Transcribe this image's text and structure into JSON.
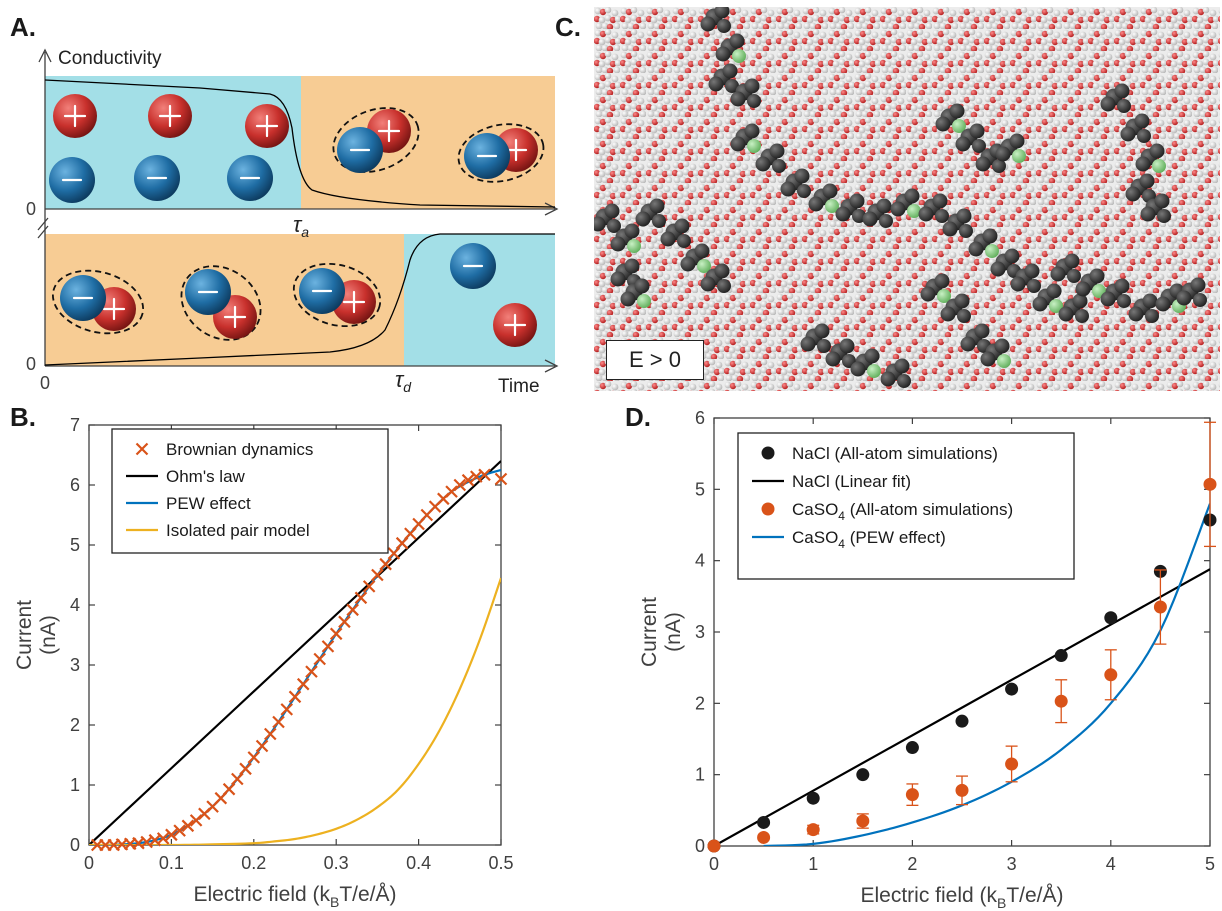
{
  "panels": {
    "a": "A.",
    "b": "B.",
    "c": "C.",
    "d": "D."
  },
  "schematic": {
    "ylabel": "Conductivity",
    "xlabel": "Time",
    "zero_top": "0",
    "zero_bottom": "0",
    "origin": "0",
    "tau_a": "τ",
    "tau_a_sub": "a",
    "tau_d": "τ",
    "tau_d_sub": "d",
    "colors": {
      "free": "#a3dfe7",
      "paired": "#f7cc94",
      "cation": "#c8302c",
      "anion": "#1f6da4"
    }
  },
  "snapshot": {
    "label": "E > 0"
  },
  "chart_data": [
    {
      "type": "line",
      "panel": "B",
      "xlabel": "Electric field (k_BT/e/Å)",
      "ylabel": "Current (nA)",
      "xlim": [
        0,
        0.5
      ],
      "ylim": [
        0,
        7
      ],
      "xticks": [
        0,
        0.1,
        0.2,
        0.3,
        0.4,
        0.5
      ],
      "yticks": [
        0,
        1,
        2,
        3,
        4,
        5,
        6,
        7
      ],
      "legend_position": "top-left",
      "series": [
        {
          "name": "Brownian dynamics",
          "kind": "markers",
          "marker": "x",
          "color": "#d95319",
          "x": [
            0.01,
            0.02,
            0.03,
            0.04,
            0.05,
            0.06,
            0.07,
            0.08,
            0.09,
            0.1,
            0.11,
            0.12,
            0.13,
            0.14,
            0.15,
            0.16,
            0.17,
            0.18,
            0.19,
            0.2,
            0.21,
            0.22,
            0.23,
            0.24,
            0.25,
            0.26,
            0.27,
            0.28,
            0.29,
            0.3,
            0.31,
            0.32,
            0.33,
            0.34,
            0.35,
            0.36,
            0.37,
            0.38,
            0.39,
            0.4,
            0.41,
            0.42,
            0.43,
            0.44,
            0.45,
            0.46,
            0.47,
            0.48,
            0.5
          ],
          "y": [
            0.0,
            0.0,
            0.0,
            0.01,
            0.02,
            0.03,
            0.05,
            0.08,
            0.11,
            0.17,
            0.24,
            0.32,
            0.41,
            0.52,
            0.64,
            0.78,
            0.93,
            1.1,
            1.27,
            1.46,
            1.65,
            1.85,
            2.05,
            2.26,
            2.47,
            2.68,
            2.89,
            3.1,
            3.31,
            3.52,
            3.72,
            3.92,
            4.12,
            4.31,
            4.5,
            4.68,
            4.86,
            5.03,
            5.19,
            5.35,
            5.5,
            5.64,
            5.77,
            5.89,
            6.0,
            6.08,
            6.14,
            6.17,
            6.1
          ]
        },
        {
          "name": "Ohm's law",
          "kind": "line",
          "color": "#000000",
          "x": [
            0,
            0.5
          ],
          "y": [
            0,
            6.4
          ]
        },
        {
          "name": "PEW effect",
          "kind": "line",
          "color": "#0072bd",
          "x": [
            0,
            0.02,
            0.04,
            0.06,
            0.08,
            0.1,
            0.12,
            0.14,
            0.16,
            0.18,
            0.2,
            0.22,
            0.24,
            0.26,
            0.28,
            0.3,
            0.32,
            0.34,
            0.36,
            0.38,
            0.4,
            0.42,
            0.44,
            0.46,
            0.48,
            0.5
          ],
          "y": [
            0,
            0.0,
            0.01,
            0.03,
            0.08,
            0.17,
            0.32,
            0.52,
            0.78,
            1.1,
            1.46,
            1.85,
            2.26,
            2.68,
            3.1,
            3.52,
            3.92,
            4.31,
            4.68,
            5.03,
            5.35,
            5.64,
            5.89,
            6.05,
            6.17,
            6.25
          ]
        },
        {
          "name": "Isolated pair model",
          "kind": "line",
          "color": "#edb120",
          "x": [
            0,
            0.1,
            0.15,
            0.2,
            0.225,
            0.25,
            0.275,
            0.3,
            0.325,
            0.35,
            0.375,
            0.4,
            0.425,
            0.45,
            0.475,
            0.5
          ],
          "y": [
            0,
            0.0,
            0.01,
            0.03,
            0.06,
            0.1,
            0.17,
            0.27,
            0.42,
            0.63,
            0.92,
            1.35,
            1.9,
            2.6,
            3.45,
            4.45
          ]
        }
      ]
    },
    {
      "type": "scatter",
      "panel": "D",
      "xlabel": "Electric field (k_BT/e/Å)",
      "ylabel": "Current (nA)",
      "xlim": [
        0,
        5
      ],
      "ylim": [
        0,
        6
      ],
      "xticks": [
        0,
        1,
        2,
        3,
        4,
        5
      ],
      "yticks": [
        0,
        1,
        2,
        3,
        4,
        5,
        6
      ],
      "legend_position": "top-left",
      "series": [
        {
          "name": "NaCl (All-atom simulations)",
          "kind": "markers",
          "marker": "dot",
          "color": "#1a1a1a",
          "x": [
            0,
            0.5,
            1,
            1.5,
            2,
            2.5,
            3,
            3.5,
            4,
            4.5,
            5
          ],
          "y": [
            0,
            0.33,
            0.67,
            1.0,
            1.38,
            1.75,
            2.2,
            2.67,
            3.2,
            3.85,
            4.57
          ]
        },
        {
          "name": "NaCl (Linear fit)",
          "kind": "line",
          "color": "#000000",
          "x": [
            0,
            5
          ],
          "y": [
            0,
            3.88
          ]
        },
        {
          "name": "CaSO4 (All-atom simulations)",
          "kind": "errorbar",
          "marker": "dot",
          "color": "#d95319",
          "x": [
            0,
            0.5,
            1,
            1.5,
            2,
            2.5,
            3,
            3.5,
            4,
            4.5,
            5
          ],
          "y": [
            0,
            0.12,
            0.23,
            0.35,
            0.72,
            0.78,
            1.15,
            2.03,
            2.4,
            3.35,
            5.07
          ],
          "err": [
            0,
            0.0,
            0.06,
            0.1,
            0.15,
            0.2,
            0.25,
            0.3,
            0.35,
            0.52,
            0.87
          ]
        },
        {
          "name": "CaSO4 (PEW effect)",
          "kind": "line",
          "color": "#0072bd",
          "x": [
            0.5,
            1,
            1.5,
            2,
            2.5,
            3,
            3.5,
            4,
            4.5,
            5
          ],
          "y": [
            0.0,
            0.03,
            0.15,
            0.33,
            0.57,
            0.9,
            1.35,
            2.0,
            3.02,
            4.8
          ]
        }
      ]
    }
  ]
}
